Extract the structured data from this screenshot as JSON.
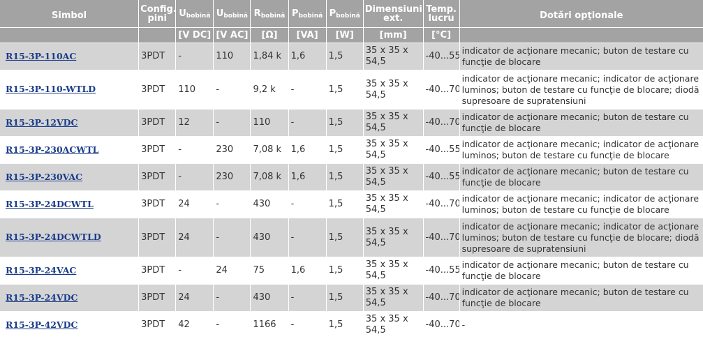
{
  "header": {
    "symbol": "Simbol",
    "config_line1": "Config.",
    "config_line2": "pini",
    "u_dc_main": "U",
    "u_dc_sub": "bobină",
    "u_ac_main": "U",
    "u_ac_sub": "bobină",
    "r_main": "R",
    "r_sub": "bobină",
    "p_va_main": "P",
    "p_va_sub": "bobină",
    "p_w_main": "P",
    "p_w_sub": "bobină",
    "dim_line1": "Dimensiuni",
    "dim_line2": "ext.",
    "temp_line1": "Temp.",
    "temp_line2": "lucru",
    "dotari": "Dotări opţionale"
  },
  "units": {
    "symbol": "",
    "config": "",
    "u_dc": "[V DC]",
    "u_ac": "[V AC]",
    "r": "[Ω]",
    "p_va": "[VA]",
    "p_w": "[W]",
    "dim": "[mm]",
    "temp": "[°C]",
    "dotari": ""
  },
  "rows": [
    {
      "symbol": "R15-3P-110AC",
      "config": "3PDT",
      "u_dc": "-",
      "u_ac": "110",
      "r": "1,84 k",
      "p_va": "1,6",
      "p_w": "1,5",
      "dim": "35 x 35 x 54,5",
      "temp": "-40...55",
      "dotari": "indicator de acţionare mecanic; buton de testare cu funcţie de blocare"
    },
    {
      "symbol": "R15-3P-110-WTLD",
      "config": "3PDT",
      "u_dc": "110",
      "u_ac": "-",
      "r": "9,2 k",
      "p_va": "-",
      "p_w": "1,5",
      "dim": "35 x 35 x 54,5",
      "temp": "-40...70",
      "dotari": "indicator de acţionare mecanic; indicator de acţionare luminos; buton de testare cu funcţie de blocare; diodă supresoare de supratensiuni"
    },
    {
      "symbol": "R15-3P-12VDC",
      "config": "3PDT",
      "u_dc": "12",
      "u_ac": "-",
      "r": "110",
      "p_va": "-",
      "p_w": "1,5",
      "dim": "35 x 35 x 54,5",
      "temp": "-40...70",
      "dotari": "indicator de acţionare mecanic; buton de testare cu funcţie de blocare"
    },
    {
      "symbol": "R15-3P-230ACWTL",
      "config": "3PDT",
      "u_dc": "-",
      "u_ac": "230",
      "r": "7,08 k",
      "p_va": "1,6",
      "p_w": "1,5",
      "dim": "35 x 35 x 54,5",
      "temp": "-40...55",
      "dotari": "indicator de acţionare mecanic; indicator de acţionare luminos; buton de testare cu funcţie de blocare"
    },
    {
      "symbol": "R15-3P-230VAC",
      "config": "3PDT",
      "u_dc": "-",
      "u_ac": "230",
      "r": "7,08 k",
      "p_va": "1,6",
      "p_w": "1,5",
      "dim": "35 x 35 x 54,5",
      "temp": "-40...55",
      "dotari": "indicator de acţionare mecanic; buton de testare cu funcţie de blocare"
    },
    {
      "symbol": "R15-3P-24DCWTL",
      "config": "3PDT",
      "u_dc": "24",
      "u_ac": "-",
      "r": "430",
      "p_va": "-",
      "p_w": "1,5",
      "dim": "35 x 35 x 54,5",
      "temp": "-40...70",
      "dotari": "indicator de acţionare mecanic; indicator de acţionare luminos; buton de testare cu funcţie de blocare"
    },
    {
      "symbol": "R15-3P-24DCWTLD",
      "config": "3PDT",
      "u_dc": "24",
      "u_ac": "-",
      "r": "430",
      "p_va": "-",
      "p_w": "1,5",
      "dim": "35 x 35 x 54,5",
      "temp": "-40...70",
      "dotari": "indicator de acţionare mecanic; indicator de acţionare luminos; buton de testare cu funcţie de blocare; diodă supresoare de supratensiuni"
    },
    {
      "symbol": "R15-3P-24VAC",
      "config": "3PDT",
      "u_dc": "-",
      "u_ac": "24",
      "r": "75",
      "p_va": "1,6",
      "p_w": "1,5",
      "dim": "35 x 35 x 54,5",
      "temp": "-40...55",
      "dotari": "indicator de acţionare mecanic; buton de testare cu funcţie de blocare"
    },
    {
      "symbol": "R15-3P-24VDC",
      "config": "3PDT",
      "u_dc": "24",
      "u_ac": "-",
      "r": "430",
      "p_va": "-",
      "p_w": "1,5",
      "dim": "35 x 35 x 54,5",
      "temp": "-40...70",
      "dotari": "indicator de acţionare mecanic; buton de testare cu funcţie de blocare"
    },
    {
      "symbol": "R15-3P-42VDC",
      "config": "3PDT",
      "u_dc": "42",
      "u_ac": "-",
      "r": "1166",
      "p_va": "-",
      "p_w": "1,5",
      "dim": "35 x 35 x 54,5",
      "temp": "-40...70",
      "dotari": "-"
    }
  ]
}
